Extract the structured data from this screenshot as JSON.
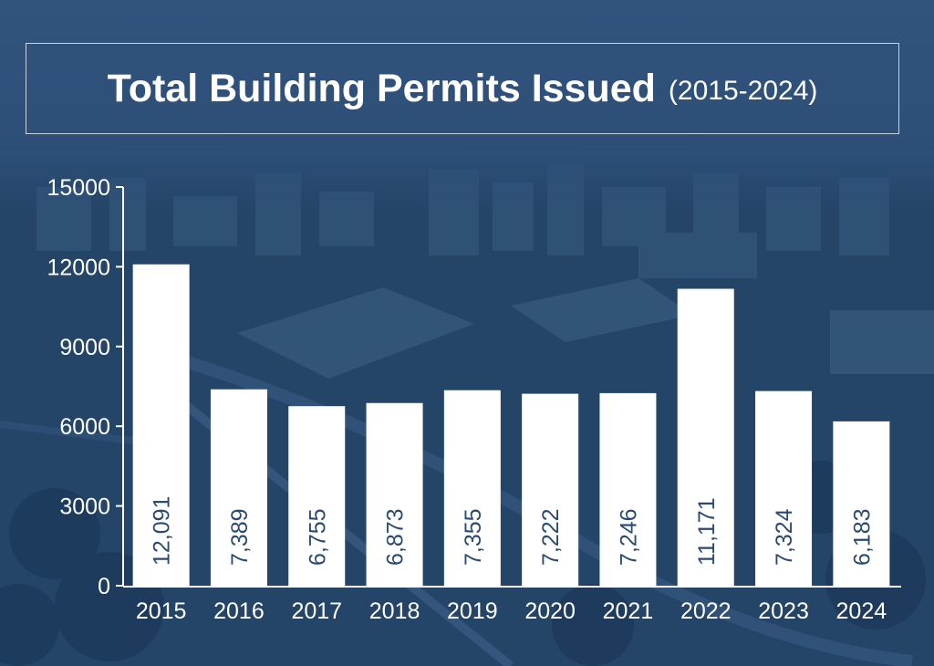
{
  "title": {
    "main": "Total Building Permits Issued",
    "sub": "(2015-2024)"
  },
  "colors": {
    "background": "#234469",
    "bar": "#ffffff",
    "bar_label": "#2a4a72",
    "axis_text": "#ffffff",
    "axis_line": "#ffffff"
  },
  "chart_data": {
    "type": "bar",
    "categories": [
      "2015",
      "2016",
      "2017",
      "2018",
      "2019",
      "2020",
      "2021",
      "2022",
      "2023",
      "2024"
    ],
    "values": [
      12091,
      7389,
      6755,
      6873,
      7355,
      7222,
      7246,
      11171,
      7324,
      6183
    ],
    "value_labels": [
      "12,091",
      "7,389",
      "6,755",
      "6,873",
      "7,355",
      "7,222",
      "7,246",
      "11,171",
      "7,324",
      "6,183"
    ],
    "yticks": [
      "0",
      "3000",
      "6000",
      "9000",
      "12000",
      "15000"
    ],
    "ylim": [
      0,
      15000
    ],
    "grid": false,
    "legend": "none"
  }
}
